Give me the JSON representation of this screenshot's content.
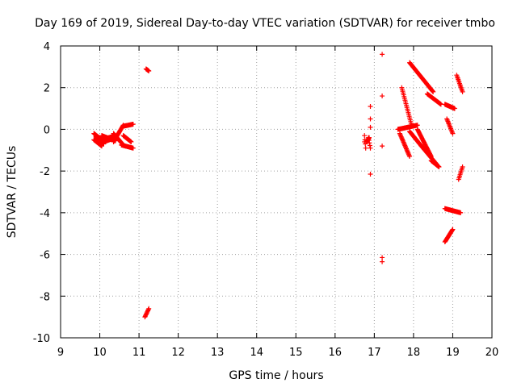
{
  "chart_data": {
    "type": "scatter",
    "title": "Day 169 of 2019, Sidereal Day-to-day VTEC variation (SDTVAR) for receiver tmbo",
    "xlabel": "GPS time / hours",
    "ylabel": "SDTVAR / TECUs",
    "xlim": [
      9,
      20
    ],
    "ylim": [
      -10,
      4
    ],
    "xticks": [
      "9",
      "10",
      "11",
      "12",
      "13",
      "14",
      "15",
      "16",
      "17",
      "18",
      "19",
      "20"
    ],
    "yticks": [
      "4",
      "2",
      "0",
      "-2",
      "-4",
      "-6",
      "-8",
      "-10"
    ],
    "grid": true,
    "marker": "plus",
    "color": "#ff0000",
    "segments": [
      {
        "x0": 9.85,
        "x1": 10.05,
        "y0": -0.2,
        "y1": -0.5
      },
      {
        "x0": 9.85,
        "x1": 10.05,
        "y0": -0.5,
        "y1": -0.8
      },
      {
        "x0": 9.9,
        "x1": 10.1,
        "y0": -0.35,
        "y1": -0.7
      },
      {
        "x0": 10.05,
        "x1": 10.4,
        "y0": -0.5,
        "y1": -0.3
      },
      {
        "x0": 10.05,
        "x1": 10.4,
        "y0": -0.3,
        "y1": -0.55
      },
      {
        "x0": 10.1,
        "x1": 10.4,
        "y0": -0.6,
        "y1": -0.4
      },
      {
        "x0": 10.35,
        "x1": 10.6,
        "y0": -0.2,
        "y1": -0.75
      },
      {
        "x0": 10.35,
        "x1": 10.6,
        "y0": -0.6,
        "y1": 0.2
      },
      {
        "x0": 10.6,
        "x1": 10.85,
        "y0": 0.15,
        "y1": 0.25
      },
      {
        "x0": 10.55,
        "x1": 10.85,
        "y0": -0.75,
        "y1": -0.9
      },
      {
        "x0": 10.6,
        "x1": 10.8,
        "y0": -0.3,
        "y1": -0.6
      },
      {
        "x0": 11.18,
        "x1": 11.25,
        "y0": 2.9,
        "y1": 2.8
      },
      {
        "x0": 11.15,
        "x1": 11.25,
        "y0": -9.0,
        "y1": -8.6
      },
      {
        "x0": 16.75,
        "x1": 16.78,
        "y0": -0.3,
        "y1": -0.9
      },
      {
        "x0": 16.85,
        "x1": 16.9,
        "y0": -0.4,
        "y1": -0.9
      },
      {
        "x0": 16.8,
        "x1": 16.87,
        "y0": -0.6,
        "y1": -0.4
      },
      {
        "x0": 17.7,
        "x1": 17.95,
        "y0": 2.0,
        "y1": 0.2
      },
      {
        "x0": 17.65,
        "x1": 17.9,
        "y0": -0.2,
        "y1": -1.3
      },
      {
        "x0": 17.9,
        "x1": 18.5,
        "y0": 3.2,
        "y1": 1.8
      },
      {
        "x0": 18.35,
        "x1": 18.7,
        "y0": 1.7,
        "y1": 1.2
      },
      {
        "x0": 17.6,
        "x1": 18.1,
        "y0": 0.0,
        "y1": 0.2
      },
      {
        "x0": 17.9,
        "x1": 18.2,
        "y0": -0.1,
        "y1": -0.8
      },
      {
        "x0": 18.1,
        "x1": 18.45,
        "y0": 0.0,
        "y1": -1.3
      },
      {
        "x0": 18.2,
        "x1": 18.6,
        "y0": -0.8,
        "y1": -1.7
      },
      {
        "x0": 18.45,
        "x1": 18.65,
        "y0": -1.5,
        "y1": -1.8
      },
      {
        "x0": 18.8,
        "x1": 19.05,
        "y0": 1.2,
        "y1": 1.0
      },
      {
        "x0": 18.85,
        "x1": 19.0,
        "y0": 0.5,
        "y1": -0.2
      },
      {
        "x0": 19.1,
        "x1": 19.25,
        "y0": 2.6,
        "y1": 1.8
      },
      {
        "x0": 18.8,
        "x1": 19.2,
        "y0": -3.8,
        "y1": -4.0
      },
      {
        "x0": 18.8,
        "x1": 19.0,
        "y0": -5.4,
        "y1": -4.8
      },
      {
        "x0": 19.15,
        "x1": 19.25,
        "y0": -2.4,
        "y1": -1.8
      }
    ],
    "points": [
      {
        "x": 16.75,
        "y": -0.6
      },
      {
        "x": 16.9,
        "y": 1.1
      },
      {
        "x": 16.9,
        "y": 0.5
      },
      {
        "x": 16.9,
        "y": 0.1
      },
      {
        "x": 16.9,
        "y": -2.15
      },
      {
        "x": 17.2,
        "y": 3.6
      },
      {
        "x": 17.2,
        "y": 1.6
      },
      {
        "x": 17.2,
        "y": -0.8
      },
      {
        "x": 17.2,
        "y": -6.15
      },
      {
        "x": 17.2,
        "y": -6.35
      }
    ]
  }
}
